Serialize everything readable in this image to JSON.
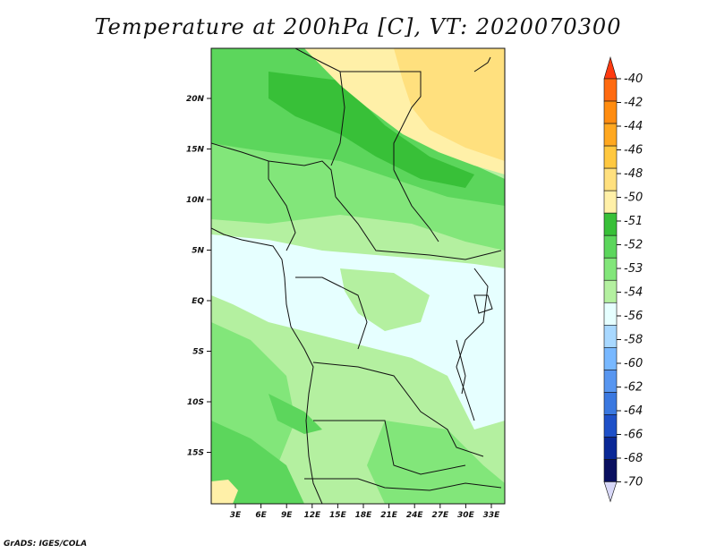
{
  "title": "Temperature at 200hPa [C], VT: 2020070300",
  "credit": "GrADS: IGES/COLA",
  "map": {
    "lat_labels": [
      "20N",
      "15N",
      "10N",
      "5N",
      "EQ",
      "5S",
      "10S",
      "15S"
    ],
    "lon_labels": [
      "3E",
      "6E",
      "9E",
      "12E",
      "15E",
      "18E",
      "21E",
      "24E",
      "27E",
      "30E",
      "33E"
    ],
    "colors": {
      "pale_cyan": "#e6ffff",
      "light_green": "#b4f0a0",
      "mid_green": "#82e67a",
      "green": "#5cd65c",
      "dark_green": "#38c038",
      "pale_yellow": "#fff0a8",
      "yellow": "#ffe07e"
    }
  },
  "colorbar": {
    "labels": [
      "-40",
      "-42",
      "-44",
      "-46",
      "-48",
      "-50",
      "-51",
      "-52",
      "-53",
      "-54",
      "-56",
      "-58",
      "-60",
      "-62",
      "-64",
      "-66",
      "-68",
      "-70"
    ],
    "colors": [
      "#ff3a10",
      "#ff6a10",
      "#ff8c10",
      "#ffa820",
      "#ffc840",
      "#ffe07e",
      "#fff0a8",
      "#38c038",
      "#5cd65c",
      "#82e67a",
      "#b4f0a0",
      "#e6ffff",
      "#a8d8ff",
      "#78b8ff",
      "#5896f0",
      "#3a78e0",
      "#1e50c8",
      "#0a2896",
      "#0a1060",
      "#d8d8f8"
    ]
  }
}
